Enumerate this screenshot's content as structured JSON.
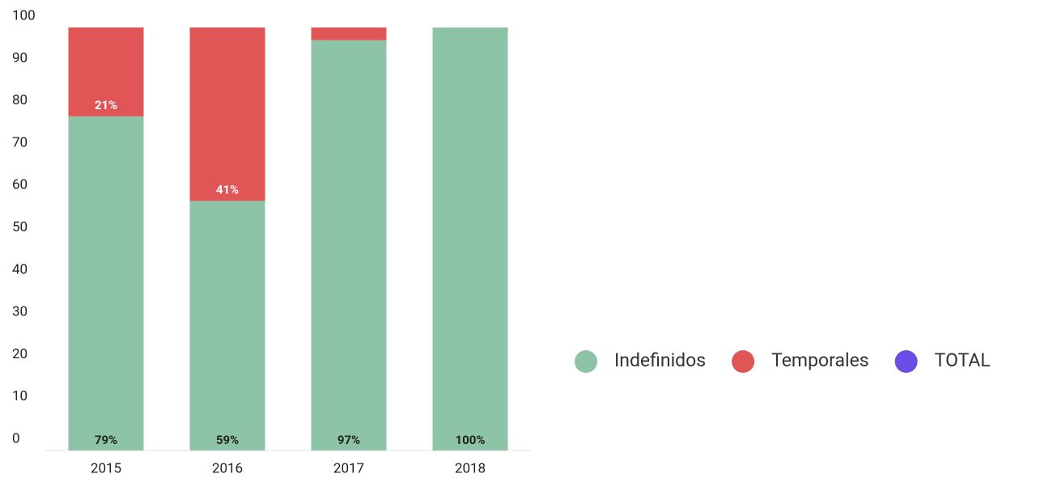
{
  "chart_data": {
    "type": "stacked_bar",
    "categories": [
      "2015",
      "2016",
      "2017",
      "2018"
    ],
    "series": [
      {
        "name": "Indefinidos",
        "color": "#8dc3a7",
        "values": [
          79,
          59,
          97,
          100
        ],
        "value_labels": [
          "79%",
          "59%",
          "97%",
          "100%"
        ]
      },
      {
        "name": "Temporales",
        "color": "#e05556",
        "values": [
          21,
          41,
          3,
          0
        ],
        "value_labels": [
          "21%",
          "41%",
          null,
          null
        ]
      },
      {
        "name": "TOTAL",
        "color": "#6b4de6",
        "values": [
          null,
          null,
          null,
          null
        ]
      }
    ],
    "ylim": [
      0,
      100
    ],
    "yticks": [
      0,
      10,
      20,
      30,
      40,
      50,
      60,
      70,
      80,
      90,
      100
    ],
    "grid": false,
    "legend": "right"
  }
}
